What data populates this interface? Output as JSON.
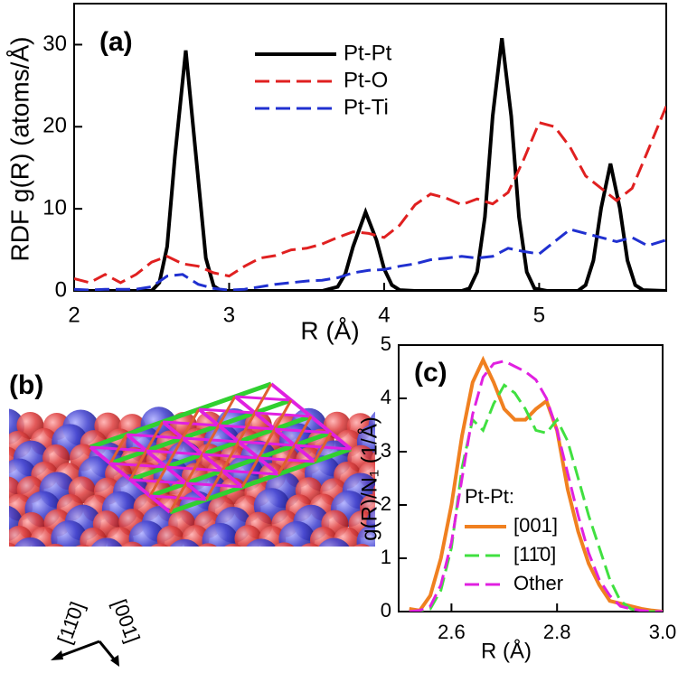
{
  "chart_data": [
    {
      "type": "line",
      "label": "(a)",
      "y_label": "RDF g(R) (atoms/Å)",
      "x_label": "R (Å)",
      "xlim": [
        2,
        5.82
      ],
      "ylim": [
        0,
        35
      ],
      "xticks": [
        2,
        3,
        4,
        5
      ],
      "yticks": [
        0,
        10,
        20,
        30
      ],
      "series": [
        {
          "name": "Pt-Pt",
          "color": "#000000",
          "line_style": "solid",
          "x": [
            2.0,
            2.5,
            2.55,
            2.6,
            2.65,
            2.72,
            2.8,
            2.85,
            2.9,
            2.95,
            3.0,
            3.6,
            3.7,
            3.75,
            3.8,
            3.88,
            3.95,
            4.0,
            4.05,
            4.1,
            4.2,
            4.5,
            4.55,
            4.6,
            4.65,
            4.7,
            4.76,
            4.82,
            4.87,
            4.92,
            4.97,
            5.05,
            5.25,
            5.3,
            5.35,
            5.4,
            5.46,
            5.52,
            5.57,
            5.62,
            5.67,
            5.82
          ],
          "values": [
            0,
            0,
            1.0,
            5.4,
            16.4,
            29.3,
            13.7,
            4.0,
            0.6,
            0,
            0,
            0,
            0.5,
            2.1,
            5.4,
            9.6,
            6.2,
            2.7,
            0.7,
            0.1,
            0,
            0,
            0.3,
            2.3,
            9.0,
            21.3,
            30.8,
            21.3,
            9.0,
            2.3,
            0.3,
            0,
            0,
            0.7,
            3.7,
            10.1,
            15.5,
            10.1,
            3.7,
            0.7,
            0.1,
            0
          ]
        },
        {
          "name": "Pt-O",
          "color": "#e02020",
          "line_style": "dashed",
          "x": [
            2.0,
            2.1,
            2.2,
            2.3,
            2.4,
            2.5,
            2.6,
            2.7,
            2.8,
            2.9,
            3.0,
            3.1,
            3.2,
            3.3,
            3.4,
            3.5,
            3.6,
            3.7,
            3.8,
            3.9,
            4.0,
            4.1,
            4.2,
            4.3,
            4.4,
            4.5,
            4.6,
            4.7,
            4.8,
            4.9,
            5.0,
            5.1,
            5.2,
            5.3,
            5.4,
            5.5,
            5.6,
            5.7,
            5.82
          ],
          "values": [
            1.5,
            1.0,
            2.0,
            1.0,
            2.0,
            3.5,
            4.2,
            3.3,
            3.0,
            2.2,
            1.8,
            3.0,
            4.0,
            4.3,
            5.0,
            5.2,
            5.7,
            6.5,
            7.2,
            7.0,
            6.5,
            8.0,
            10.5,
            11.8,
            11.3,
            10.5,
            11.2,
            10.6,
            12.0,
            16.0,
            20.5,
            20.0,
            17.5,
            14.0,
            12.5,
            11.0,
            12.5,
            17.0,
            22.5
          ]
        },
        {
          "name": "Pt-Ti",
          "color": "#2030d0",
          "line_style": "dashed",
          "x": [
            2.0,
            2.1,
            2.2,
            2.3,
            2.4,
            2.5,
            2.6,
            2.7,
            2.8,
            2.9,
            3.0,
            3.1,
            3.2,
            3.3,
            3.4,
            3.5,
            3.6,
            3.7,
            3.8,
            3.9,
            4.0,
            4.1,
            4.2,
            4.3,
            4.4,
            4.5,
            4.6,
            4.7,
            4.8,
            4.9,
            5.0,
            5.1,
            5.2,
            5.3,
            5.4,
            5.5,
            5.6,
            5.7,
            5.82
          ],
          "values": [
            0.2,
            0.1,
            0.2,
            0.2,
            0.2,
            0.5,
            1.8,
            2.0,
            0.8,
            0.3,
            0.1,
            0.2,
            0.5,
            0.8,
            1.0,
            1.2,
            1.3,
            1.6,
            2.2,
            2.5,
            2.6,
            3.0,
            3.3,
            3.8,
            4.0,
            4.2,
            4.0,
            4.2,
            5.2,
            4.8,
            4.5,
            6.0,
            7.5,
            7.0,
            6.5,
            6.0,
            6.5,
            5.5,
            6.2
          ]
        }
      ]
    },
    {
      "type": "line",
      "label": "(c)",
      "y_label": "g(R)/N₁ (1/Å)",
      "x_label": "R (Å)",
      "legend_title": "Pt-Pt:",
      "xlim": [
        2.5,
        3.0
      ],
      "ylim": [
        0,
        5
      ],
      "xticks": [
        2.6,
        2.8,
        {
          "value": 3,
          "label": "3.0"
        }
      ],
      "yticks": [
        0,
        1,
        2,
        3,
        4,
        5
      ],
      "series": [
        {
          "name": "[001]",
          "color": "#f08020",
          "line_style": "solid",
          "x": [
            2.52,
            2.54,
            2.56,
            2.58,
            2.6,
            2.62,
            2.64,
            2.66,
            2.68,
            2.7,
            2.72,
            2.74,
            2.76,
            2.78,
            2.8,
            2.82,
            2.84,
            2.86,
            2.88,
            2.9,
            2.92,
            2.94,
            2.96,
            2.98,
            3.0
          ],
          "values": [
            0.05,
            0.02,
            0.3,
            1.0,
            2.0,
            3.3,
            4.3,
            4.72,
            4.3,
            3.8,
            3.6,
            3.6,
            3.8,
            3.95,
            3.4,
            2.3,
            1.5,
            0.9,
            0.5,
            0.2,
            0.15,
            0.1,
            0.05,
            0.02,
            0
          ]
        },
        {
          "name": "[11̄0]",
          "color": "#40e040",
          "line_style": "dashed",
          "x": [
            2.52,
            2.54,
            2.56,
            2.58,
            2.6,
            2.62,
            2.64,
            2.66,
            2.68,
            2.7,
            2.72,
            2.74,
            2.76,
            2.78,
            2.8,
            2.82,
            2.84,
            2.86,
            2.88,
            2.9,
            2.92,
            2.94,
            2.96,
            2.98,
            3.0
          ],
          "values": [
            0,
            0,
            0.05,
            0.4,
            1.2,
            2.7,
            3.6,
            3.4,
            3.9,
            4.25,
            4.1,
            3.8,
            3.4,
            3.35,
            3.6,
            3.2,
            2.5,
            1.8,
            1.2,
            0.6,
            0.2,
            0.05,
            0,
            0,
            0
          ]
        },
        {
          "name": "Other",
          "color": "#e020e0",
          "line_style": "dashed",
          "x": [
            2.52,
            2.54,
            2.56,
            2.58,
            2.6,
            2.62,
            2.64,
            2.66,
            2.68,
            2.7,
            2.72,
            2.74,
            2.76,
            2.78,
            2.8,
            2.82,
            2.84,
            2.86,
            2.88,
            2.9,
            2.92,
            2.94,
            2.96,
            2.98,
            3.0
          ],
          "values": [
            0,
            0.02,
            0.1,
            0.5,
            1.3,
            2.5,
            3.7,
            4.4,
            4.65,
            4.7,
            4.6,
            4.5,
            4.35,
            4.0,
            3.4,
            2.6,
            1.8,
            1.1,
            0.6,
            0.3,
            0.1,
            0.05,
            0.02,
            0,
            0
          ]
        }
      ]
    }
  ],
  "panel_b": {
    "label": "(b)",
    "directions": [
      "[11̄0]",
      "[001]"
    ]
  }
}
